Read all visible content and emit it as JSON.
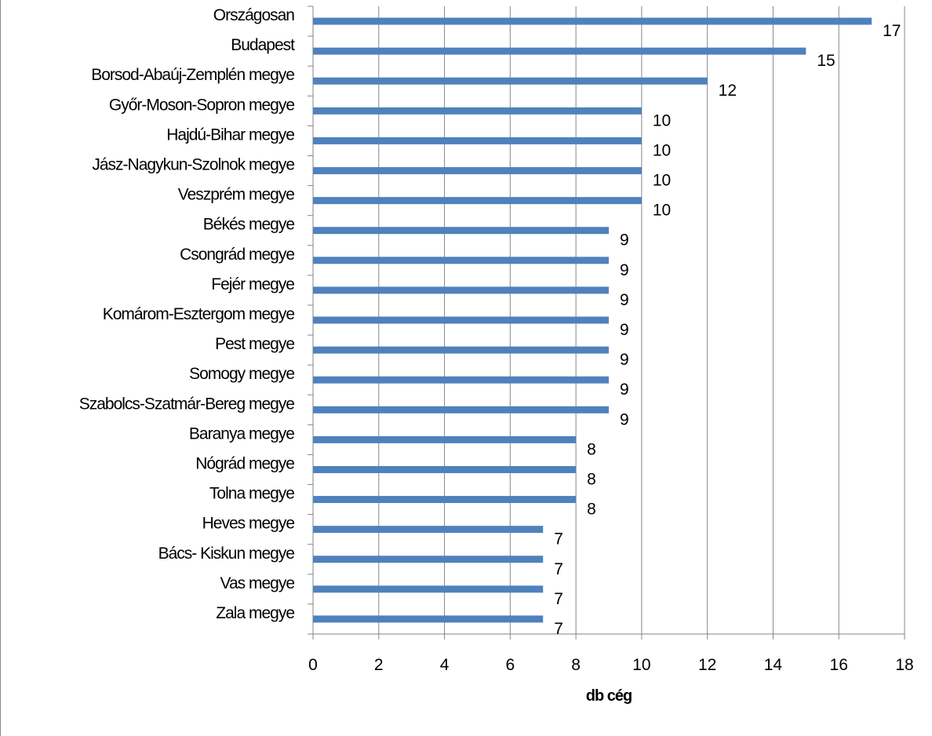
{
  "chart_data": {
    "type": "bar",
    "orientation": "horizontal",
    "title": "",
    "xlabel": "db cég",
    "ylabel": "",
    "xlim": [
      0,
      18
    ],
    "x_ticks": [
      0,
      2,
      4,
      6,
      8,
      10,
      12,
      14,
      16,
      18
    ],
    "grid": "vertical",
    "legend": "none",
    "bar_color": "#4F81BD",
    "categories": [
      "Országosan",
      "Budapest",
      "Borsod-Abaúj-Zemplén megye",
      "Győr-Moson-Sopron megye",
      "Hajdú-Bihar megye",
      "Jász-Nagykun-Szolnok megye",
      "Veszprém megye",
      "Békés megye",
      "Csongrád megye",
      "Fejér megye",
      "Komárom-Esztergom megye",
      "Pest megye",
      "Somogy megye",
      "Szabolcs-Szatmár-Bereg megye",
      "Baranya megye",
      "Nógrád megye",
      "Tolna megye",
      "Heves megye",
      "Bács- Kiskun megye",
      "Vas megye",
      "Zala megye"
    ],
    "values": [
      17,
      15,
      12,
      10,
      10,
      10,
      10,
      9,
      9,
      9,
      9,
      9,
      9,
      9,
      8,
      8,
      8,
      7,
      7,
      7,
      7
    ]
  }
}
